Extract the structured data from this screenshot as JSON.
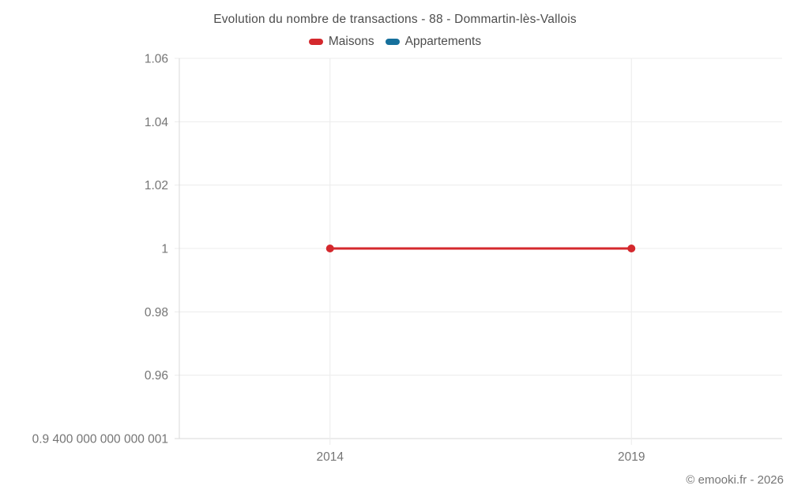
{
  "attribution": "© emooki.fr - 2026",
  "chart_data": {
    "type": "line",
    "title": "Evolution du nombre de transactions - 88 - Dommartin-lès-Vallois",
    "legend_position": "top",
    "grid": true,
    "x_axis": {
      "min": 2011.5,
      "max": 2021.5,
      "ticks": [
        2014,
        2019
      ],
      "tick_labels": [
        "2014",
        "2019"
      ]
    },
    "y_axis": {
      "min": 0.9400000000000001,
      "max": 1.06,
      "ticks": [
        1.06,
        1.04,
        1.02,
        1,
        0.98,
        0.96,
        0.9400000000000001
      ],
      "tick_labels": [
        "1.06",
        "1.04",
        "1.02",
        "1",
        "0.98",
        "0.96",
        "0.9 400 000 000 000 001"
      ]
    },
    "series": [
      {
        "name": "Maisons",
        "color": "#d4282d",
        "points": [
          [
            2014,
            1
          ],
          [
            2019,
            1
          ]
        ]
      },
      {
        "name": "Appartements",
        "color": "#16709c",
        "points": []
      }
    ],
    "colors": {
      "grid": "#ececec",
      "axis": "#d9d9d9",
      "tick_text": "#757575",
      "title_text": "#4d4d4d"
    }
  }
}
